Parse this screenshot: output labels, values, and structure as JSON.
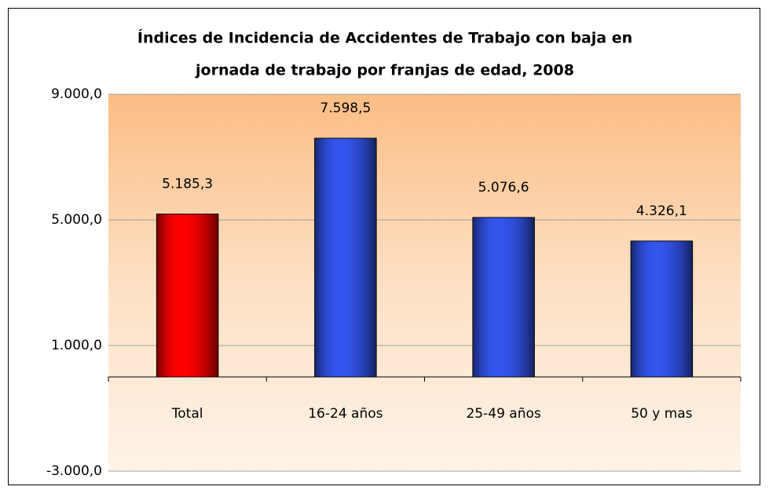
{
  "chart_data": {
    "type": "bar",
    "title": [
      "Índices de Incidencia de Accidentes de Trabajo con baja en",
      "jornada de trabajo por franjas de edad, 2008"
    ],
    "categories": [
      "Total",
      "16-24 años",
      "25-49 años",
      "50 y mas"
    ],
    "values": [
      5185.3,
      7598.5,
      5076.6,
      4326.1
    ],
    "value_labels": [
      "5.185,3",
      "7.598,5",
      "5.076,6",
      "4.326,1"
    ],
    "colors": [
      "#ff0000",
      "#3355ee",
      "#3355ee",
      "#3355ee"
    ],
    "ylim": [
      -3000,
      9000
    ],
    "yticks": [
      {
        "value": -3000,
        "label": "-3.000,0"
      },
      {
        "value": 1000,
        "label": "1.000,0"
      },
      {
        "value": 5000,
        "label": "5.000,0"
      },
      {
        "value": 9000,
        "label": "9.000,0"
      }
    ],
    "grid": true
  }
}
